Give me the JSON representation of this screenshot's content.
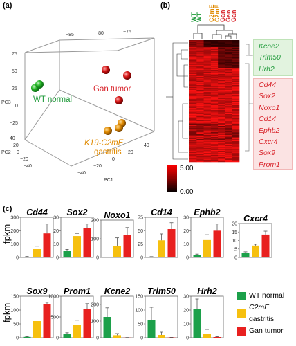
{
  "panel_labels": {
    "a": "(a)",
    "b": "(b)",
    "c": "(c)"
  },
  "pca": {
    "axis_ticks_top": [
      "−85",
      "−80",
      "−75"
    ],
    "axis_ticks_left": [
      "75",
      "50",
      "25",
      "0",
      "−25"
    ],
    "axis_ticks_left2": [
      "40",
      "20",
      "0",
      "−20",
      "−40"
    ],
    "axis_ticks_bottom": [
      "−40",
      "−20",
      "0",
      "20",
      "40"
    ],
    "axis_labels": {
      "pc1": "PC1",
      "pc2": "PC2",
      "pc3": "PC3"
    },
    "groups": {
      "wt": "WT normal",
      "gan": "Gan tumor",
      "c2me_line1": "K19-C2mE",
      "c2me_line2": "gastritis"
    }
  },
  "heatmap": {
    "column_labels": [
      "WT",
      "WT",
      "C2mE",
      "C2mE",
      "Gan",
      "Gan",
      "Gan"
    ],
    "column_colors": [
      "#1f9a3a",
      "#1f9a3a",
      "#e08a00",
      "#e08a00",
      "#d8232a",
      "#d8232a",
      "#d8232a"
    ],
    "scale_labels": [
      "5.00",
      "0.00"
    ],
    "down_genes": [
      "Kcne2",
      "Trim50",
      "Hrh2"
    ],
    "up_genes": [
      "Cd44",
      "Sox2",
      "Noxo1",
      "Cd14",
      "Ephb2",
      "Cxcr4",
      "Sox9",
      "Prom1"
    ]
  },
  "bar_panel": {
    "ylabel": "fpkm",
    "legend": [
      "WT normal",
      "C2mE gastritis",
      "Gan tumor"
    ],
    "legend_italic_part": "C2mE",
    "colors": {
      "wt": "#1ca04a",
      "c2me": "#f6c00f",
      "gan": "#e8201f"
    }
  },
  "chart_data": [
    {
      "type": "bar",
      "title": "Cd44",
      "categories": [
        "WT normal",
        "C2mE gastritis",
        "Gan tumor"
      ],
      "values": [
        5,
        62,
        180
      ],
      "errors": [
        2,
        22,
        70
      ],
      "ylim": [
        0,
        300
      ],
      "yticks": [
        0,
        100,
        200,
        300
      ]
    },
    {
      "type": "bar",
      "title": "Sox2",
      "categories": [
        "WT normal",
        "C2mE gastritis",
        "Gan tumor"
      ],
      "values": [
        5,
        16,
        22
      ],
      "errors": [
        1,
        2,
        3
      ],
      "ylim": [
        0,
        30
      ],
      "yticks": [
        0,
        10,
        20,
        30
      ]
    },
    {
      "type": "bar",
      "title": "Noxo1",
      "categories": [
        "WT normal",
        "C2mE gastritis",
        "Gan tumor"
      ],
      "values": [
        1,
        60,
        120
      ],
      "errors": [
        0.5,
        45,
        40
      ],
      "ylim": [
        0,
        200
      ],
      "yticks": [
        0,
        100,
        200
      ]
    },
    {
      "type": "bar",
      "title": "Cd14",
      "categories": [
        "WT normal",
        "C2mE gastritis",
        "Gan tumor"
      ],
      "values": [
        1,
        32,
        53
      ],
      "errors": [
        0.5,
        12,
        12
      ],
      "ylim": [
        0,
        75
      ],
      "yticks": [
        0,
        25,
        50,
        75
      ]
    },
    {
      "type": "bar",
      "title": "Ephb2",
      "categories": [
        "WT normal",
        "C2mE gastritis",
        "Gan tumor"
      ],
      "values": [
        2,
        13,
        20
      ],
      "errors": [
        0.5,
        4,
        5
      ],
      "ylim": [
        0,
        30
      ],
      "yticks": [
        0,
        10,
        20,
        30
      ]
    },
    {
      "type": "bar",
      "title": "Cxcr4",
      "categories": [
        "WT normal",
        "C2mE gastritis",
        "Gan tumor"
      ],
      "values": [
        2.5,
        7,
        13.5
      ],
      "errors": [
        0.8,
        0.8,
        2
      ],
      "ylim": [
        0,
        20
      ],
      "yticks": [
        0,
        5,
        10,
        15,
        20
      ]
    },
    {
      "type": "bar",
      "title": "Sox9",
      "categories": [
        "WT normal",
        "C2mE gastritis",
        "Gan tumor"
      ],
      "values": [
        3,
        60,
        120
      ],
      "errors": [
        1,
        4,
        8
      ],
      "ylim": [
        0,
        150
      ],
      "yticks": [
        0,
        50,
        100,
        150
      ]
    },
    {
      "type": "bar",
      "title": "Prom1",
      "categories": [
        "WT normal",
        "C2mE gastritis",
        "Gan tumor"
      ],
      "values": [
        100,
        300,
        700
      ],
      "errors": [
        20,
        120,
        120
      ],
      "ylim": [
        0,
        1000
      ],
      "yticks": [
        0,
        500,
        1000
      ]
    },
    {
      "type": "bar",
      "title": "Kcne2",
      "categories": [
        "WT normal",
        "C2mE gastritis",
        "Gan tumor"
      ],
      "values": [
        125,
        15,
        1
      ],
      "errors": [
        55,
        10,
        0.5
      ],
      "ylim": [
        0,
        250
      ],
      "yticks": [
        0,
        100,
        200
      ]
    },
    {
      "type": "bar",
      "title": "Trim50",
      "categories": [
        "WT normal",
        "C2mE gastritis",
        "Gan tumor"
      ],
      "values": [
        65,
        10,
        1
      ],
      "errors": [
        45,
        10,
        0.5
      ],
      "ylim": [
        0,
        150
      ],
      "yticks": [
        0,
        50,
        100,
        150
      ]
    },
    {
      "type": "bar",
      "title": "Hrh2",
      "categories": [
        "WT normal",
        "C2mE gastritis",
        "Gan tumor"
      ],
      "values": [
        21,
        3,
        0.5
      ],
      "errors": [
        7,
        3,
        0.3
      ],
      "ylim": [
        0,
        30
      ],
      "yticks": [
        0,
        10,
        20,
        30
      ]
    }
  ]
}
